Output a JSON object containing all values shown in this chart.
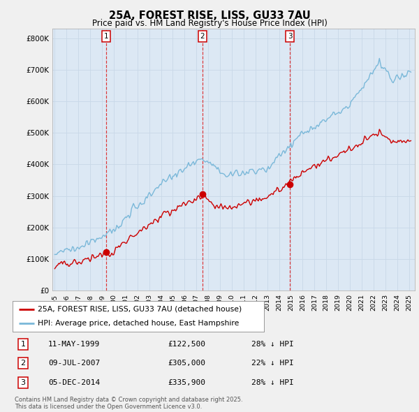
{
  "title1": "25A, FOREST RISE, LISS, GU33 7AU",
  "title2": "Price paid vs. HM Land Registry's House Price Index (HPI)",
  "ylabel_ticks": [
    "£0",
    "£100K",
    "£200K",
    "£300K",
    "£400K",
    "£500K",
    "£600K",
    "£700K",
    "£800K"
  ],
  "ytick_values": [
    0,
    100000,
    200000,
    300000,
    400000,
    500000,
    600000,
    700000,
    800000
  ],
  "ylim": [
    0,
    830000
  ],
  "xlim_start": 1994.8,
  "xlim_end": 2025.5,
  "hpi_color": "#7ab8d9",
  "price_color": "#cc0000",
  "vline_color": "#dd2222",
  "grid_color": "#c8d8e8",
  "plot_bg_color": "#dce8f4",
  "bg_color": "#f0f0f0",
  "transactions": [
    {
      "label": "1",
      "year": 1999.36,
      "price": 122500
    },
    {
      "label": "2",
      "year": 2007.52,
      "price": 305000
    },
    {
      "label": "3",
      "year": 2014.92,
      "price": 335900
    }
  ],
  "transaction_table": [
    {
      "num": "1",
      "date": "11-MAY-1999",
      "price": "£122,500",
      "hpi": "28% ↓ HPI"
    },
    {
      "num": "2",
      "date": "09-JUL-2007",
      "price": "£305,000",
      "hpi": "22% ↓ HPI"
    },
    {
      "num": "3",
      "date": "05-DEC-2014",
      "price": "£335,900",
      "hpi": "28% ↓ HPI"
    }
  ],
  "legend_entries": [
    "25A, FOREST RISE, LISS, GU33 7AU (detached house)",
    "HPI: Average price, detached house, East Hampshire"
  ],
  "footer": "Contains HM Land Registry data © Crown copyright and database right 2025.\nThis data is licensed under the Open Government Licence v3.0.",
  "hpi_seed": 101,
  "price_seed": 202
}
